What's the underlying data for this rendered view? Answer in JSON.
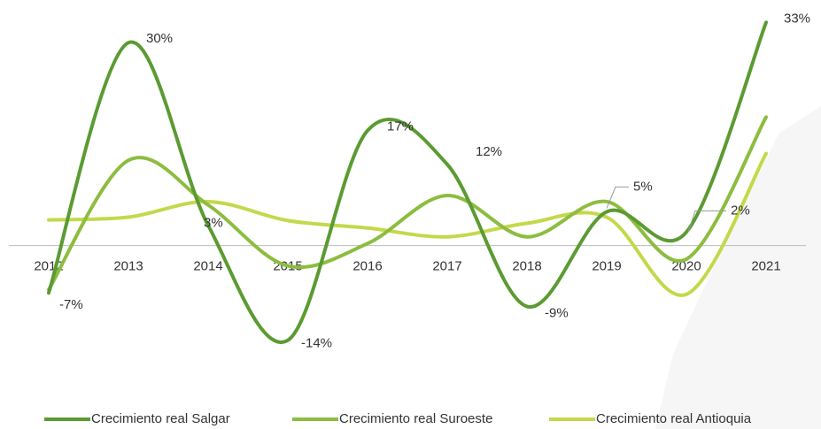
{
  "chart_data": {
    "type": "line",
    "categories": [
      "2012",
      "2013",
      "2014",
      "2015",
      "2016",
      "2017",
      "2018",
      "2019",
      "2020",
      "2021"
    ],
    "series": [
      {
        "name": "Crecimiento real Salgar",
        "color": "#5b9b32",
        "values": [
          -7,
          30,
          3,
          -14,
          17,
          12,
          -9,
          5,
          2,
          33
        ],
        "value_labels": [
          "-7%",
          "30%",
          "3%",
          "-14%",
          "17%",
          "12%",
          "-9%",
          "5%",
          "2%",
          "33%"
        ]
      },
      {
        "name": "Crecimiento real Suroeste",
        "color": "#8cbd3f",
        "values": [
          -6.5,
          12.6,
          6,
          -3,
          0.3,
          7.4,
          1.3,
          6.5,
          -2,
          19
        ]
      },
      {
        "name": "Crecimiento real Antioquia",
        "color": "#c4d84a",
        "values": [
          3.8,
          4.2,
          6.5,
          3.7,
          2.6,
          1.3,
          3.3,
          4.2,
          -7.2,
          13.6
        ]
      }
    ],
    "ylim": [
      -16,
      35
    ]
  }
}
